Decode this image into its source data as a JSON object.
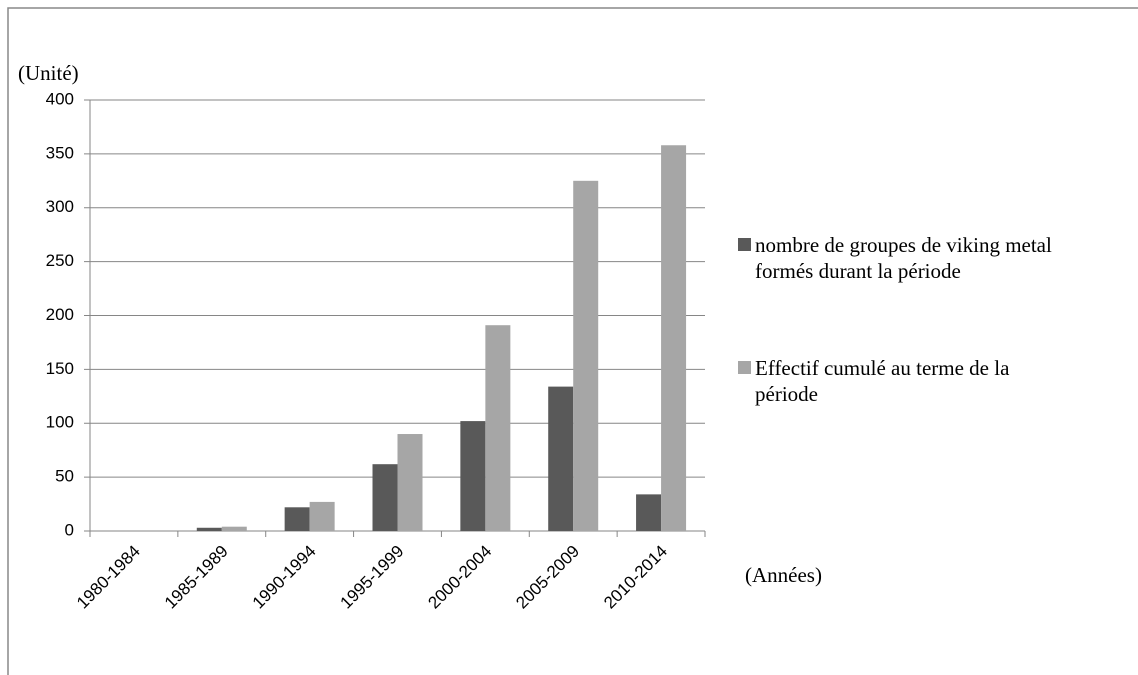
{
  "chart_data": {
    "type": "bar",
    "y_label": "(Unité)",
    "x_label": "(Années)",
    "categories": [
      "1980-1984",
      "1985-1989",
      "1990-1994",
      "1995-1999",
      "2000-2004",
      "2005-2009",
      "2010-2014"
    ],
    "series": [
      {
        "name": "nombre de groupes de viking metal formés durant la période",
        "color": "#595959",
        "values": [
          0,
          3,
          22,
          62,
          102,
          134,
          34
        ]
      },
      {
        "name": "Effectif cumulé au terme de la période",
        "color": "#a6a6a6",
        "values": [
          0,
          4,
          27,
          90,
          191,
          325,
          358
        ]
      }
    ],
    "ylim": [
      0,
      400
    ],
    "yticks": [
      0,
      50,
      100,
      150,
      200,
      250,
      300,
      350,
      400
    ],
    "grid": true,
    "legend": "right"
  }
}
